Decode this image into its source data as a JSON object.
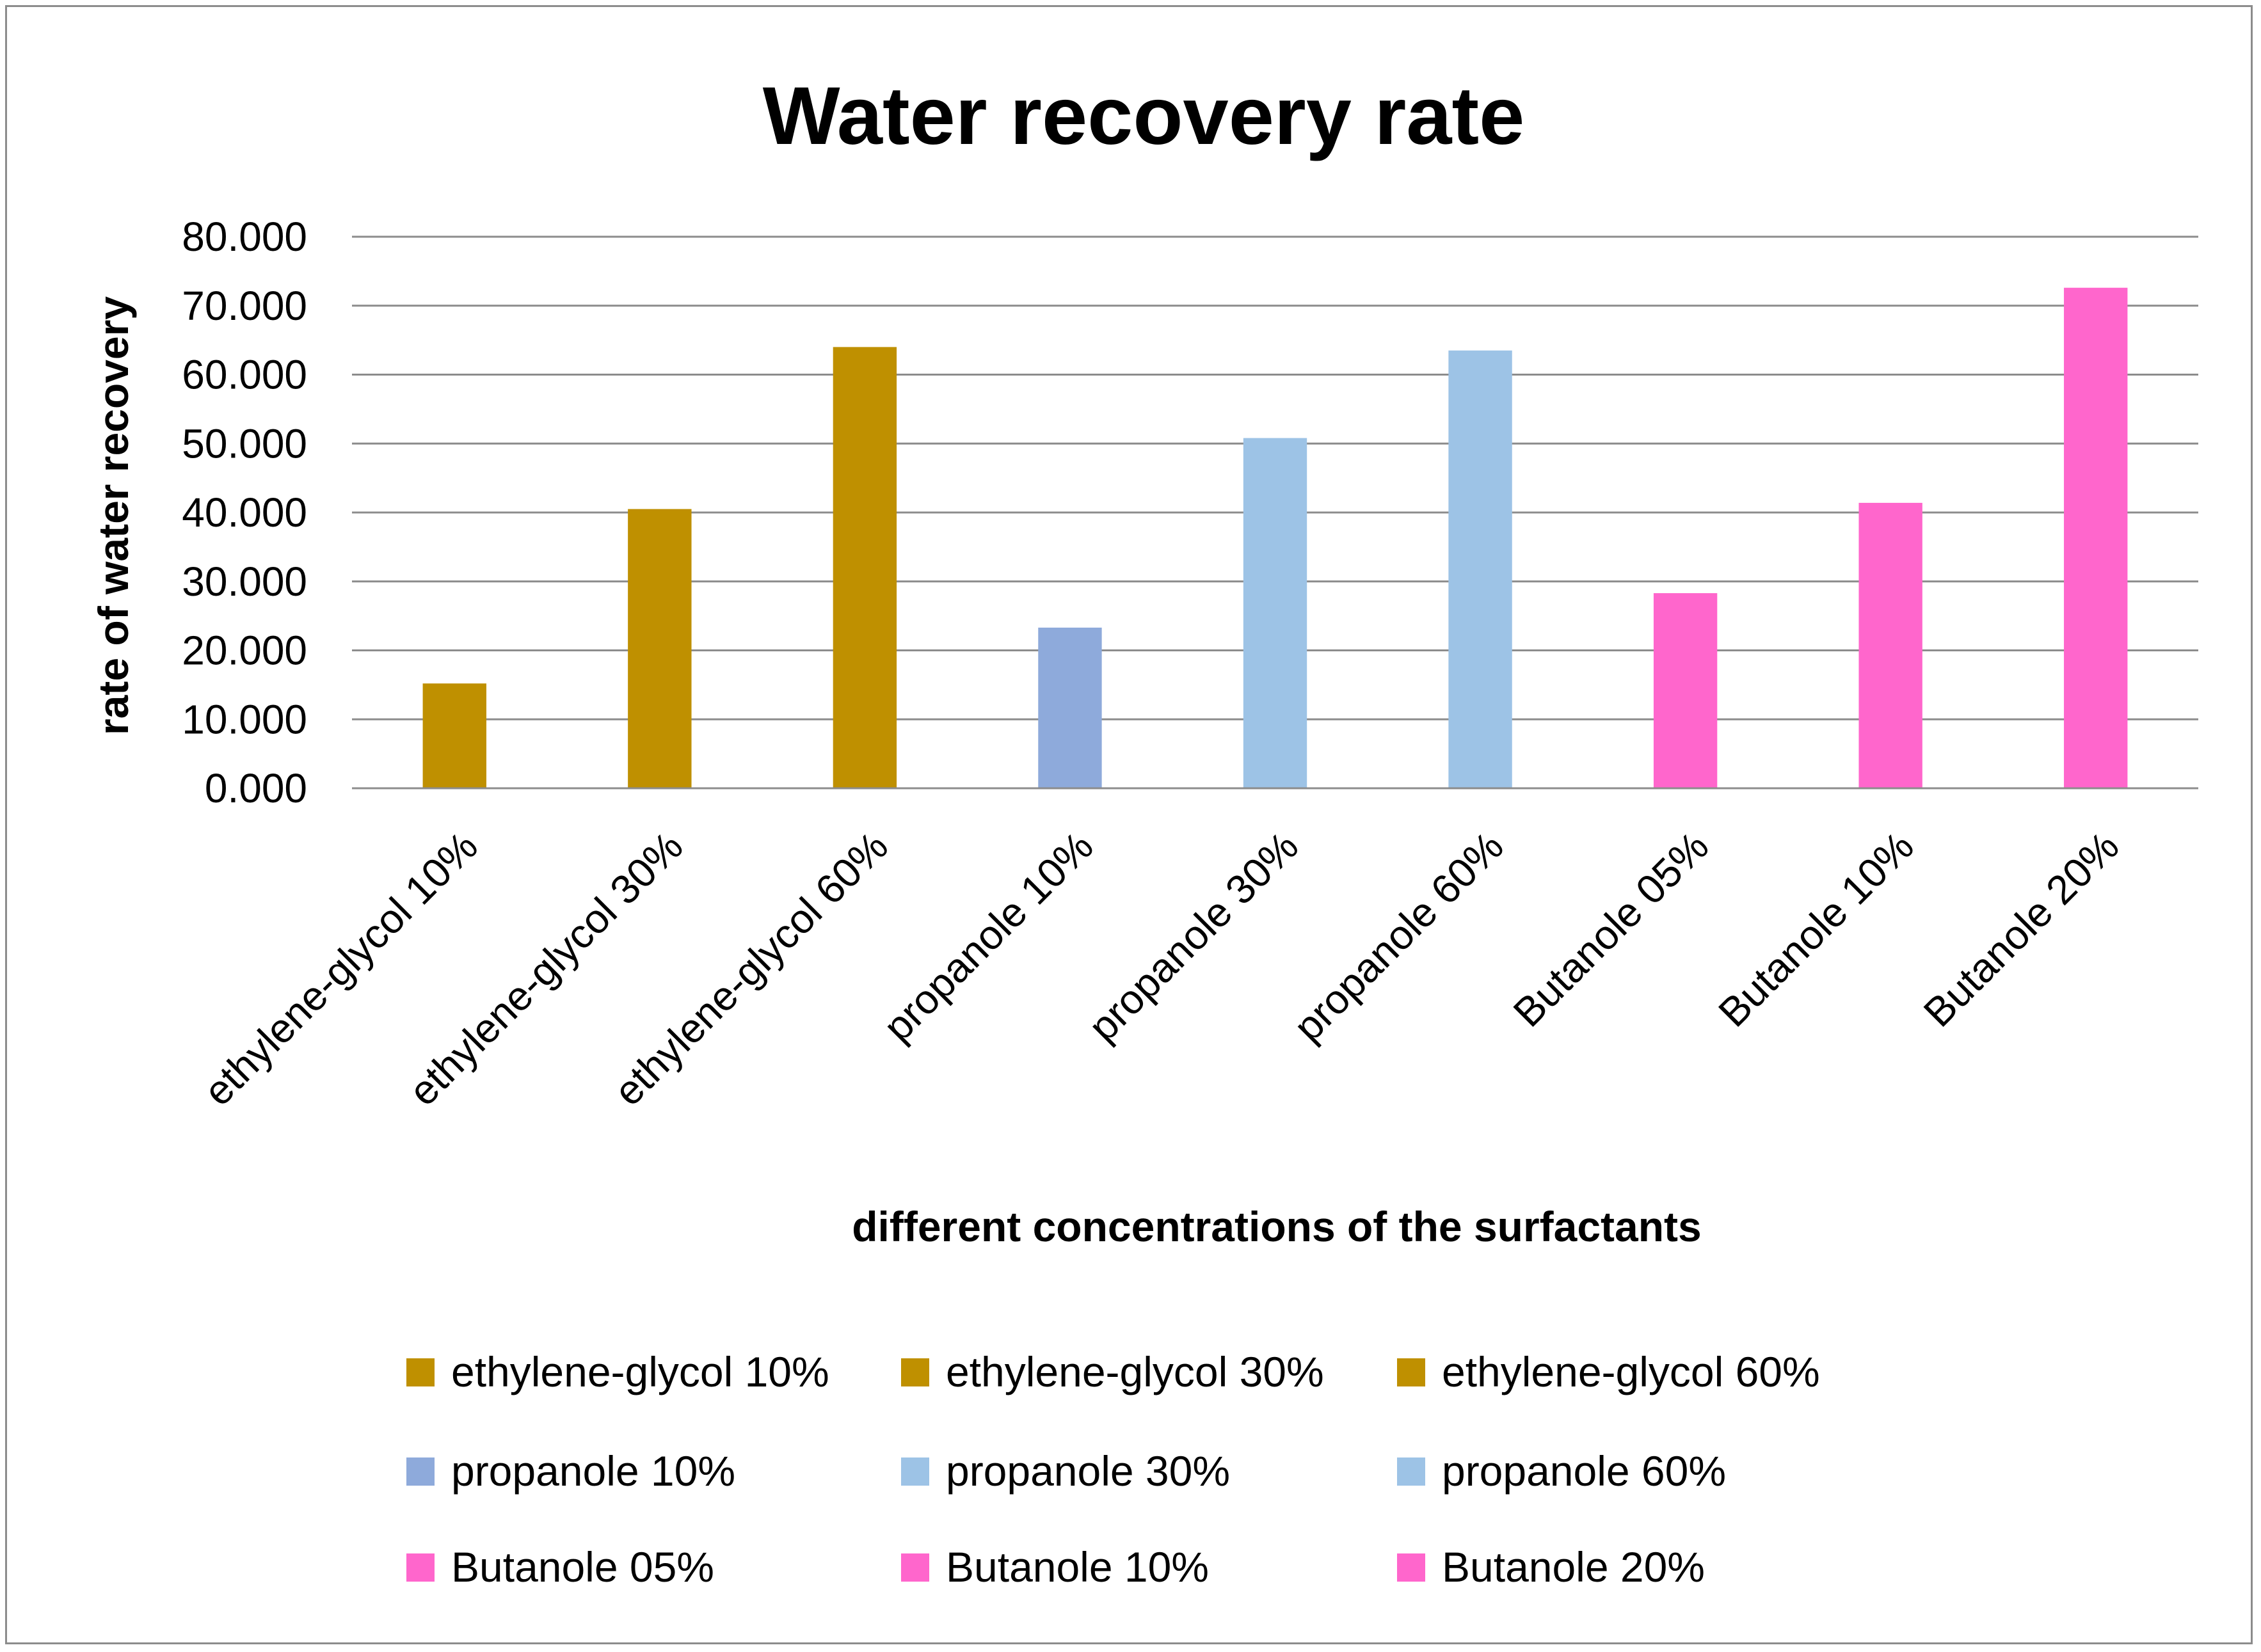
{
  "chart_data": {
    "type": "bar",
    "title": "Water recovery rate",
    "xlabel": "different concentrations of the surfactants",
    "ylabel": "rate of water recovery",
    "ylim": [
      0,
      80
    ],
    "y_ticks": [
      "0.000",
      "10.000",
      "20.000",
      "30.000",
      "40.000",
      "50.000",
      "60.000",
      "70.000",
      "80.000"
    ],
    "y_tick_values": [
      0,
      10,
      20,
      30,
      40,
      50,
      60,
      70,
      80
    ],
    "grid": true,
    "legend_position": "bottom",
    "categories": [
      "ethylene-glycol 10%",
      "ethylene-glycol 30%",
      "ethylene-glycol 60%",
      "propanole 10%",
      "propanole 30%",
      "propanole 60%",
      "Butanole 05%",
      "Butanole 10%",
      "Butanole 20%"
    ],
    "values": [
      15.2,
      40.5,
      64.0,
      23.3,
      50.8,
      63.5,
      28.3,
      41.4,
      72.6
    ],
    "colors": [
      "#bf9000",
      "#bf9000",
      "#bf9000",
      "#8eaadb",
      "#9dc3e6",
      "#9dc3e6",
      "#ff66cc",
      "#ff66cc",
      "#ff66cc"
    ],
    "legend": [
      "ethylene-glycol 10%",
      "ethylene-glycol 30%",
      "ethylene-glycol 60%",
      "propanole 10%",
      "propanole 30%",
      "propanole 60%",
      "Butanole 05%",
      "Butanole 10%",
      "Butanole 20%"
    ]
  }
}
